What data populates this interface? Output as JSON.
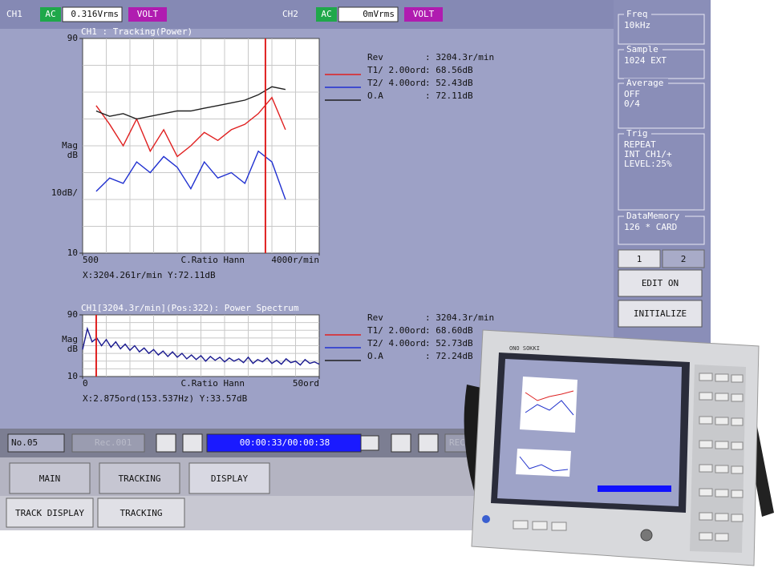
{
  "top_bar": {
    "ch1": {
      "label": "CH1",
      "coupling": "AC",
      "level": "0.316Vrms",
      "unit": "VOLT"
    },
    "ch2": {
      "label": "CH2",
      "coupling": "AC",
      "level": "0mVrms",
      "unit": "VOLT"
    }
  },
  "upper_chart": {
    "type": "line",
    "title": "CH1 : Tracking(Power)",
    "y_label": [
      "Mag",
      "dB"
    ],
    "scale_label": "10dB/",
    "x_caption": "C.Ratio  Hann",
    "xlim": [
      500,
      4000
    ],
    "ylim": [
      10,
      90
    ],
    "xticks": [
      500,
      {
        "value": 4000,
        "label": "4000r/min"
      }
    ],
    "yticks": [
      10,
      90
    ],
    "x": [
      700,
      900,
      1100,
      1300,
      1500,
      1700,
      1900,
      2100,
      2300,
      2500,
      2700,
      2900,
      3100,
      3300,
      3500
    ],
    "series": [
      {
        "name": "T1/ 2.00ord",
        "readout": ": 68.56dB",
        "color": "#e02020",
        "values": [
          65,
          58,
          50,
          60,
          48,
          56,
          46,
          50,
          55,
          52,
          56,
          58,
          62,
          68,
          56
        ]
      },
      {
        "name": "T2/ 4.00ord",
        "readout": ": 52.43dB",
        "color": "#2030d0",
        "values": [
          33,
          38,
          36,
          44,
          40,
          46,
          42,
          34,
          44,
          38,
          40,
          36,
          48,
          44,
          30
        ]
      },
      {
        "name": "O.A",
        "readout": ": 72.11dB",
        "color": "#202020",
        "values": [
          63,
          61,
          62,
          60,
          61,
          62,
          63,
          63,
          64,
          65,
          66,
          67,
          69,
          72,
          71
        ]
      }
    ],
    "rev": {
      "name": "Rev",
      "readout": ": 3204.3r/min"
    },
    "cursor_x": 3204.261,
    "cursor_readout": "X:3204.261r/min Y:72.11dB"
  },
  "lower_chart": {
    "type": "line",
    "title": "CH1[3204.3r/min](Pos:322): Power Spectrum",
    "y_label": [
      "Mag",
      "dB"
    ],
    "x_caption": "C.Ratio  Hann",
    "xlim": [
      0,
      50
    ],
    "ylim": [
      10,
      90
    ],
    "xticks": [
      0,
      {
        "value": 50,
        "label": "50ord"
      }
    ],
    "yticks": [
      10,
      90
    ],
    "color": "#1a1a90",
    "x": [
      0,
      1,
      2,
      3,
      4,
      5,
      6,
      7,
      8,
      9,
      10,
      11,
      12,
      13,
      14,
      15,
      16,
      17,
      18,
      19,
      20,
      21,
      22,
      23,
      24,
      25,
      26,
      27,
      28,
      29,
      30,
      31,
      32,
      33,
      34,
      35,
      36,
      37,
      38,
      39,
      40,
      41,
      42,
      43,
      44,
      45,
      46,
      47,
      48,
      49,
      50
    ],
    "values": [
      45,
      72,
      55,
      60,
      50,
      58,
      48,
      55,
      46,
      52,
      44,
      50,
      42,
      47,
      40,
      45,
      38,
      43,
      36,
      42,
      35,
      40,
      33,
      38,
      32,
      37,
      30,
      36,
      31,
      35,
      29,
      34,
      30,
      33,
      28,
      35,
      27,
      32,
      29,
      34,
      27,
      31,
      26,
      33,
      28,
      30,
      25,
      32,
      27,
      29,
      26
    ],
    "legend_rows": [
      {
        "name": "Rev",
        "readout": ": 3204.3r/min",
        "color": null
      },
      {
        "name": "T1/ 2.00ord",
        "readout": ": 68.60dB",
        "color": "#e02020"
      },
      {
        "name": "T2/ 4.00ord",
        "readout": ": 52.73dB",
        "color": "#2030d0"
      },
      {
        "name": "O.A",
        "readout": ": 72.24dB",
        "color": "#202020"
      }
    ],
    "cursor_x": 2.875,
    "cursor_readout": "X:2.875ord(153.537Hz) Y:33.57dB"
  },
  "side_panel": [
    {
      "title": "Freq",
      "lines": [
        "10kHz"
      ]
    },
    {
      "title": "Sample",
      "lines": [
        "1024 EXT"
      ]
    },
    {
      "title": "Average",
      "lines": [
        "OFF",
        "0/4"
      ]
    },
    {
      "title": "Trig",
      "lines": [
        "REPEAT",
        "INT CH1/+",
        "LEVEL:25%"
      ]
    },
    {
      "title": "DataMemory",
      "lines": [
        "126 * CARD"
      ]
    }
  ],
  "side_tabs": [
    "1",
    "2"
  ],
  "side_buttons": [
    "EDIT ON",
    "INITIALIZE"
  ],
  "playback": {
    "record": "No.05",
    "file": "Rec.001",
    "time": "00:00:33/00:00:38",
    "rec": "REC.."
  },
  "tabs": [
    "MAIN",
    "TRACKING",
    "DISPLAY"
  ],
  "buttons": [
    "TRACK DISPLAY",
    "TRACKING"
  ],
  "device": {
    "brand": "ONO SOKKI"
  }
}
